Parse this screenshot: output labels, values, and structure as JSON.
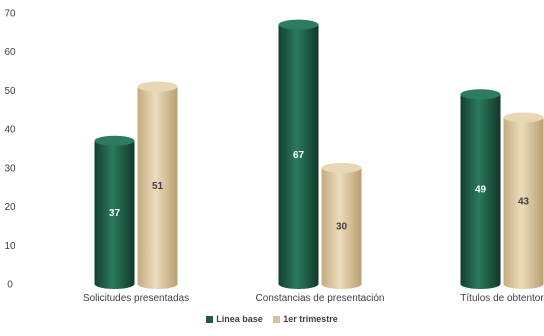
{
  "chart_data": {
    "type": "bar",
    "categories": [
      "Solicitudes presentadas",
      "Constancias de presentación",
      "Títulos de obtentor"
    ],
    "series": [
      {
        "name": "Linea base",
        "values": [
          37,
          67,
          49
        ],
        "color": "#1e5c46"
      },
      {
        "name": "1er trimestre",
        "values": [
          51,
          30,
          43
        ],
        "color": "#d9c29a"
      }
    ],
    "ylim": [
      0,
      70
    ],
    "yticks": [
      0,
      10,
      20,
      30,
      40,
      50,
      60,
      70
    ],
    "grid": false,
    "legend_position": "bottom-center",
    "data_label_colors": {
      "Linea base": "#ffffff",
      "1er trimestre": "#404040"
    }
  }
}
